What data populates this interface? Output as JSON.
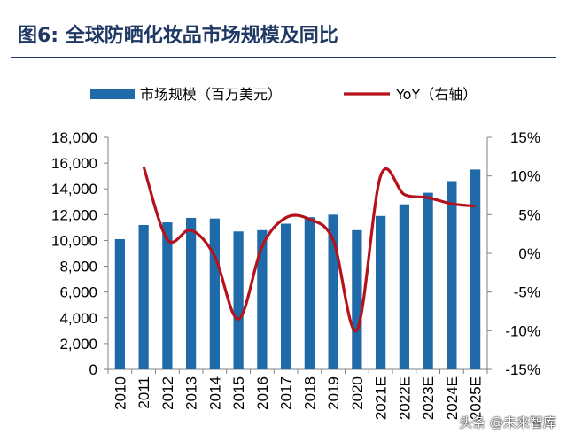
{
  "header": {
    "figure_label": "图6:",
    "title": "全球防晒化妆品市场规模及同比"
  },
  "watermark": "头条 @未来智库",
  "colors": {
    "bar": "#1f6aa8",
    "line": "#b5121b",
    "title": "#1f3864"
  },
  "chart_data": {
    "type": "bar",
    "categories": [
      "2010",
      "2011",
      "2012",
      "2013",
      "2014",
      "2015",
      "2016",
      "2017",
      "2018",
      "2019",
      "2020",
      "2021E",
      "2022E",
      "2023E",
      "2024E",
      "2025E"
    ],
    "series": [
      {
        "name": "市场规模（百万美元）",
        "type": "bar",
        "axis": "left",
        "values": [
          10100,
          11200,
          11400,
          11750,
          11700,
          10700,
          10800,
          11300,
          11800,
          12000,
          10800,
          11900,
          12800,
          13700,
          14600,
          15500
        ]
      },
      {
        "name": "YoY（右轴）",
        "type": "line",
        "axis": "right",
        "values": [
          null,
          11.2,
          1.8,
          3.0,
          -0.4,
          -8.5,
          0.9,
          4.6,
          4.4,
          1.7,
          -9.9,
          10.0,
          7.6,
          7.2,
          6.4,
          6.1
        ]
      }
    ],
    "y_left": {
      "ylim": [
        0,
        18000
      ],
      "ticks": [
        "0",
        "2,000",
        "4,000",
        "6,000",
        "8,000",
        "10,000",
        "12,000",
        "14,000",
        "16,000",
        "18,000"
      ]
    },
    "y_right": {
      "ylim": [
        -15,
        15
      ],
      "ticks": [
        "-15%",
        "-10%",
        "-5%",
        "0%",
        "5%",
        "10%",
        "15%"
      ]
    },
    "legend_position": "top",
    "grid": false
  }
}
